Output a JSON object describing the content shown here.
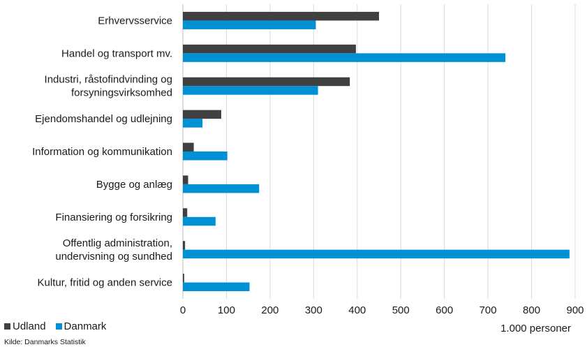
{
  "chart_data": {
    "type": "bar",
    "orientation": "horizontal",
    "categories": [
      [
        "Erhvervsservice"
      ],
      [
        "Handel og transport mv."
      ],
      [
        "Industri, råstofindvinding og",
        "forsyningsvirksomhed"
      ],
      [
        "Ejendomshandel og udlejning"
      ],
      [
        "Information og kommunikation"
      ],
      [
        "Bygge og anlæg"
      ],
      [
        "Finansiering og forsikring"
      ],
      [
        "Offentlig administration,",
        "undervisning og sundhed"
      ],
      [
        "Kultur, fritid og anden service"
      ]
    ],
    "series": [
      {
        "name": "Udland",
        "color": "#404040",
        "values": [
          450,
          397,
          383,
          88,
          25,
          12,
          10,
          5,
          3
        ]
      },
      {
        "name": "Danmark",
        "color": "#0091d5",
        "values": [
          305,
          740,
          310,
          45,
          102,
          175,
          75,
          887,
          153
        ]
      }
    ],
    "xlim": [
      0,
      900
    ],
    "xticks": [
      0,
      100,
      200,
      300,
      400,
      500,
      600,
      700,
      800,
      900
    ],
    "xticklabels": [
      "0",
      "100",
      "200",
      "300",
      "400",
      "500",
      "600",
      "700",
      "800",
      "900"
    ],
    "unit_label": "1.000 personer",
    "legend_position": "bottom-left",
    "grid": "vertical"
  },
  "source": "Kilde: Danmarks Statistik"
}
